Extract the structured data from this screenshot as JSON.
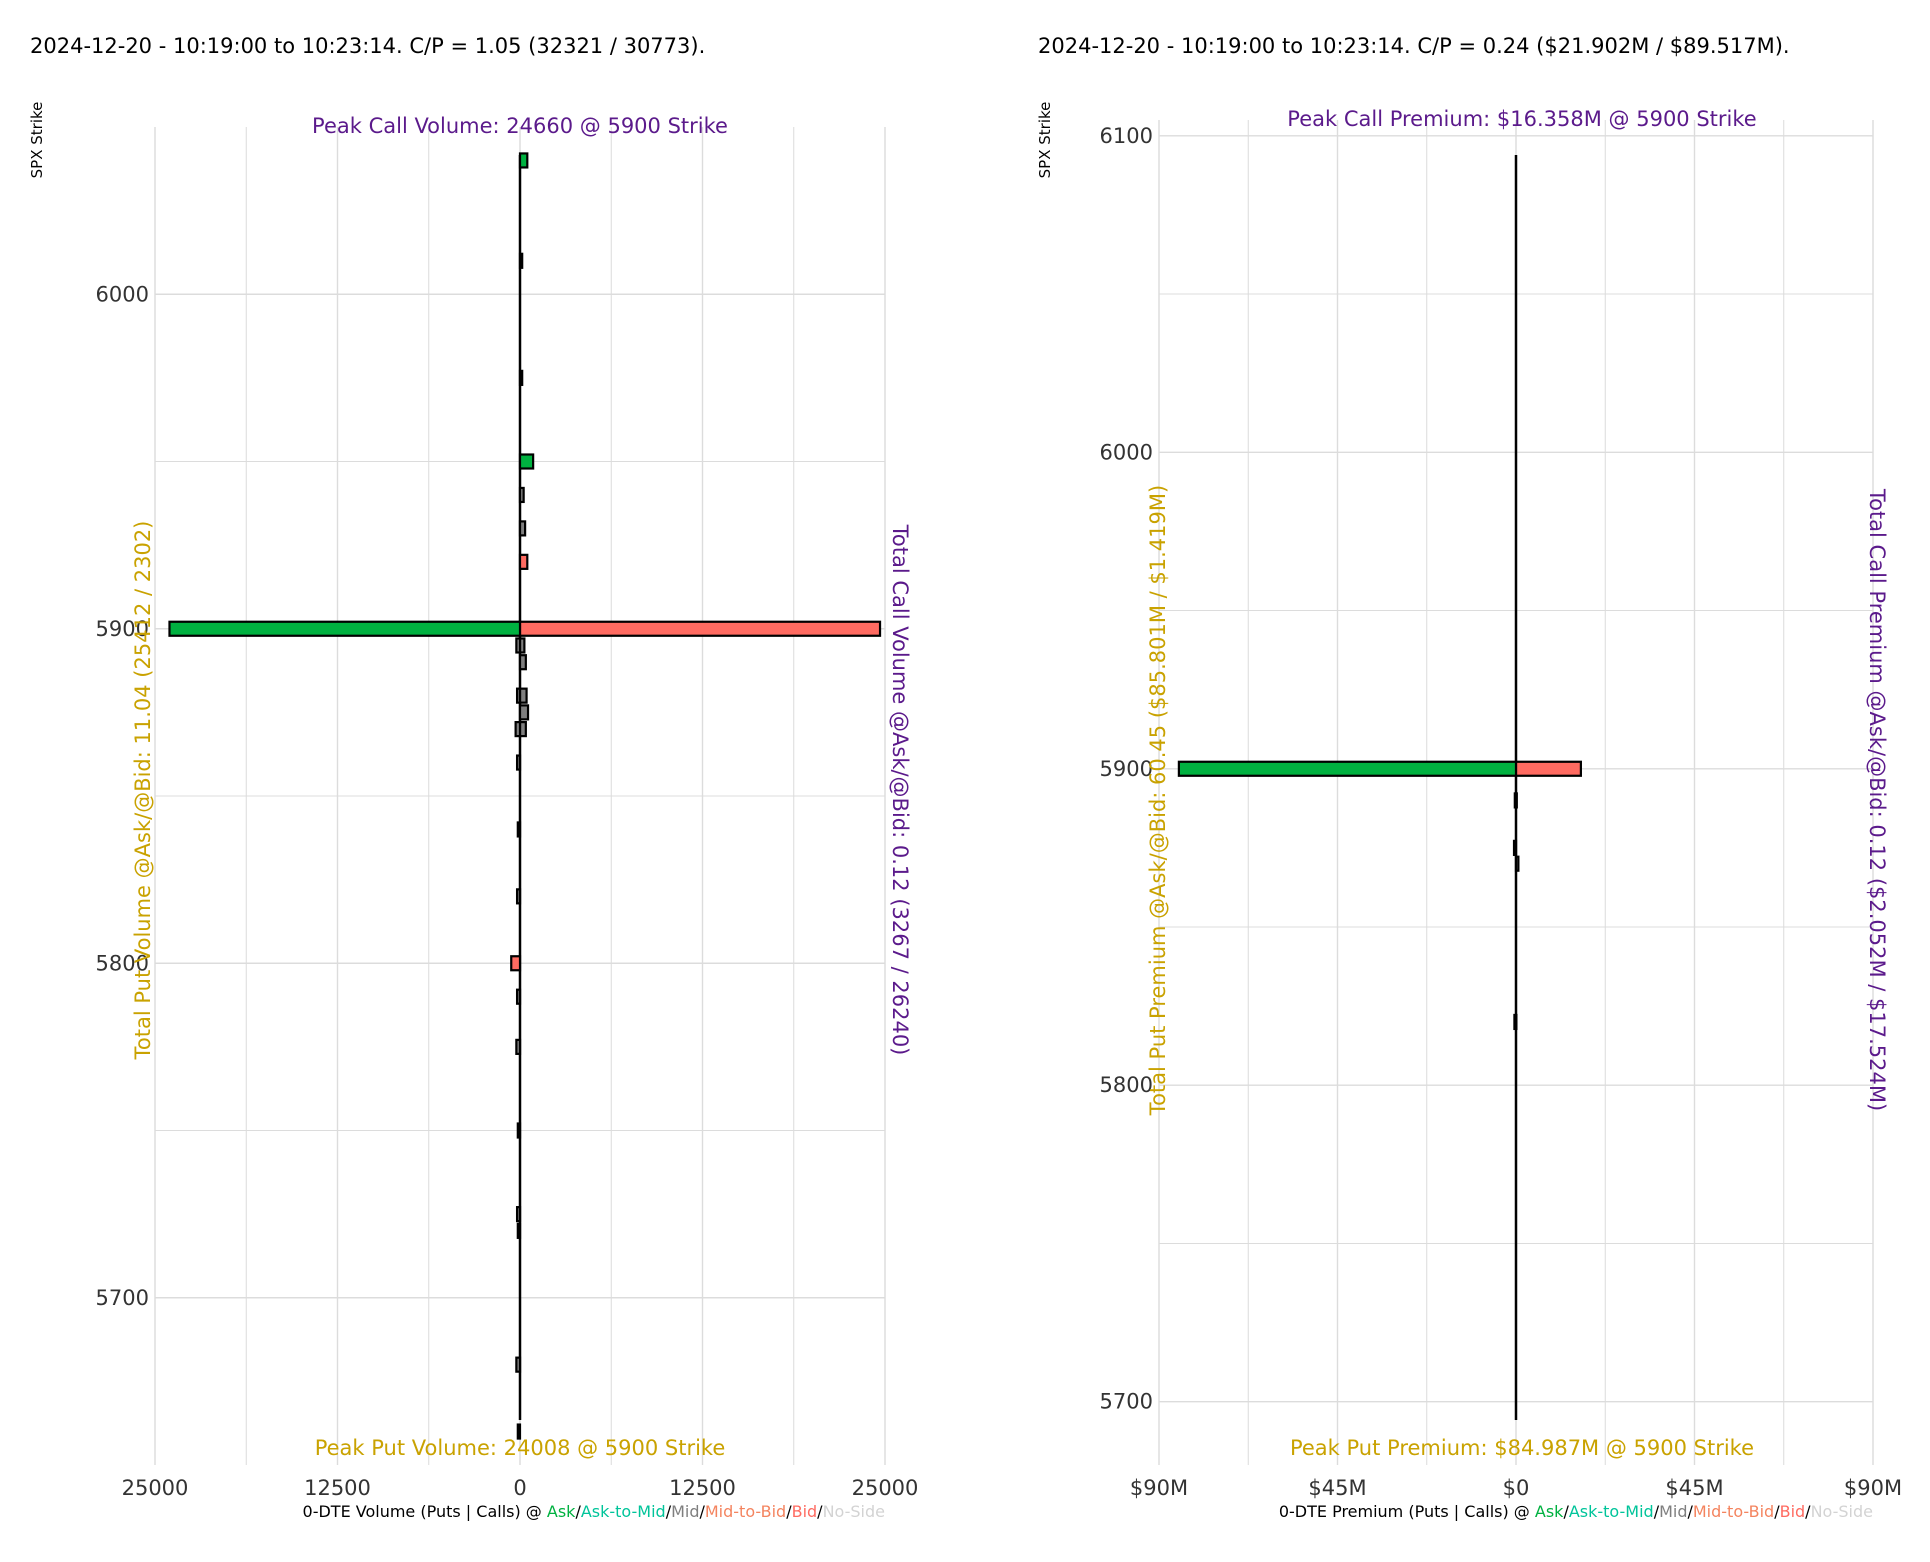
{
  "charts_meta": {
    "left_title": "2024-12-20 - 10:19:00 to 10:23:14. C/P = 1.05 (32321 / 30773).",
    "right_title": "2024-12-20 - 10:19:00 to 10:23:14. C/P = 0.24 ($21.902M / $89.517M)."
  },
  "colors": {
    "ask": "#00B140",
    "ask_to_mid": "#00C49A",
    "mid": "#7f7f7f",
    "mid_to_bid": "#F4845F",
    "bid": "#FF6B61",
    "no_side": "#d3d3d3",
    "put_text": "#C9A200",
    "call_text": "#5B1A8B",
    "grid": "#dcdcdc"
  },
  "chart_data": [
    {
      "type": "bar",
      "orientation": "horizontal",
      "title": "2024-12-20 - 10:19:00 to 10:23:14. C/P = 1.05 (32321 / 30773).",
      "ylabel": "SPX Strike",
      "xlabel_prefix": "0-DTE Volume (Puts | Calls) @ ",
      "legend": [
        "Ask",
        "Ask-to-Mid",
        "Mid",
        "Mid-to-Bid",
        "Bid",
        "No-Side"
      ],
      "ylim": [
        5650,
        6050
      ],
      "xlim": [
        -25000,
        25000
      ],
      "y_ticks": [
        5700,
        5800,
        5900,
        6000
      ],
      "y_tick_labels": [
        "5700",
        "5800",
        "5900",
        "6000"
      ],
      "x_ticks": [
        -25000,
        -12500,
        0,
        12500,
        25000
      ],
      "x_tick_labels": [
        "25000",
        "12500",
        "0",
        "12500",
        "25000"
      ],
      "annotations": {
        "peak_call": "Peak Call Volume: 24660 @ 5900 Strike",
        "peak_put": "Peak Put Volume: 24008 @ 5900 Strike",
        "total_put": "Total Put Volume @Ask/@Bid: 11.04 (25412 / 2302)",
        "total_call": "Total Call Volume @Ask/@Bid: 0.12 (3267 / 26240)"
      },
      "bars": [
        {
          "strike": 6040,
          "side": "call",
          "value": 500,
          "color": "ask"
        },
        {
          "strike": 5950,
          "side": "call",
          "value": 900,
          "color": "ask"
        },
        {
          "strike": 5920,
          "side": "call",
          "value": 500,
          "color": "bid"
        },
        {
          "strike": 5900,
          "side": "call",
          "value": 24660,
          "color": "bid"
        },
        {
          "strike": 5900,
          "side": "put",
          "value": 24008,
          "color": "ask"
        },
        {
          "strike": 5800,
          "side": "put",
          "value": 600,
          "color": "bid"
        },
        {
          "strike": 6010,
          "side": "call",
          "value": 150,
          "color": "mid"
        },
        {
          "strike": 5975,
          "side": "call",
          "value": 150,
          "color": "mid"
        },
        {
          "strike": 5940,
          "side": "call",
          "value": 250,
          "color": "mid"
        },
        {
          "strike": 5930,
          "side": "call",
          "value": 350,
          "color": "mid"
        },
        {
          "strike": 5895,
          "side": "call",
          "value": 300,
          "color": "mid"
        },
        {
          "strike": 5890,
          "side": "call",
          "value": 400,
          "color": "mid"
        },
        {
          "strike": 5880,
          "side": "call",
          "value": 450,
          "color": "mid"
        },
        {
          "strike": 5875,
          "side": "call",
          "value": 550,
          "color": "mid"
        },
        {
          "strike": 5870,
          "side": "call",
          "value": 400,
          "color": "mid"
        },
        {
          "strike": 5895,
          "side": "put",
          "value": 250,
          "color": "mid"
        },
        {
          "strike": 5880,
          "side": "put",
          "value": 200,
          "color": "mid"
        },
        {
          "strike": 5870,
          "side": "put",
          "value": 300,
          "color": "mid"
        },
        {
          "strike": 5860,
          "side": "put",
          "value": 200,
          "color": "mid"
        },
        {
          "strike": 5840,
          "side": "put",
          "value": 150,
          "color": "mid"
        },
        {
          "strike": 5820,
          "side": "put",
          "value": 200,
          "color": "mid"
        },
        {
          "strike": 5790,
          "side": "put",
          "value": 200,
          "color": "mid"
        },
        {
          "strike": 5775,
          "side": "put",
          "value": 250,
          "color": "mid"
        },
        {
          "strike": 5750,
          "side": "put",
          "value": 150,
          "color": "mid"
        },
        {
          "strike": 5725,
          "side": "put",
          "value": 200,
          "color": "mid"
        },
        {
          "strike": 5720,
          "side": "put",
          "value": 150,
          "color": "mid"
        },
        {
          "strike": 5680,
          "side": "put",
          "value": 250,
          "color": "mid"
        },
        {
          "strike": 5660,
          "side": "put",
          "value": 150,
          "color": "mid"
        }
      ]
    },
    {
      "type": "bar",
      "orientation": "horizontal",
      "title": "2024-12-20 - 10:19:00 to 10:23:14. C/P = 0.24 ($21.902M / $89.517M).",
      "ylabel": "SPX Strike",
      "xlabel_prefix": "0-DTE Premium (Puts | Calls) @ ",
      "legend": [
        "Ask",
        "Ask-to-Mid",
        "Mid",
        "Mid-to-Bid",
        "Bid",
        "No-Side"
      ],
      "ylim": [
        5680,
        6105
      ],
      "xlim": [
        -90000000,
        90000000
      ],
      "y_ticks": [
        5700,
        5800,
        5900,
        6000,
        6100
      ],
      "y_tick_labels": [
        "5700",
        "5800",
        "5900",
        "6000",
        "6100"
      ],
      "x_ticks": [
        -90000000,
        -45000000,
        0,
        45000000,
        90000000
      ],
      "x_tick_labels": [
        "$90M",
        "$45M",
        "$0",
        "$45M",
        "$90M"
      ],
      "annotations": {
        "peak_call": "Peak Call Premium: $16.358M @ 5900 Strike",
        "peak_put": "Peak Put Premium: $84.987M @ 5900 Strike",
        "total_put": "Total Put Premium @Ask/@Bid: 60.45 ($85.801M / $1.419M)",
        "total_call": "Total Call Premium @Ask/@Bid: 0.12 ($2.052M / $17.524M)"
      },
      "bars": [
        {
          "strike": 5900,
          "side": "call",
          "value": 16358000,
          "color": "bid"
        },
        {
          "strike": 5900,
          "side": "put",
          "value": 84987000,
          "color": "ask"
        },
        {
          "strike": 5870,
          "side": "call",
          "value": 600000,
          "color": "mid"
        },
        {
          "strike": 5875,
          "side": "put",
          "value": 500000,
          "color": "mid"
        },
        {
          "strike": 5820,
          "side": "put",
          "value": 400000,
          "color": "mid"
        },
        {
          "strike": 5890,
          "side": "put",
          "value": 300000,
          "color": "mid"
        }
      ]
    }
  ]
}
